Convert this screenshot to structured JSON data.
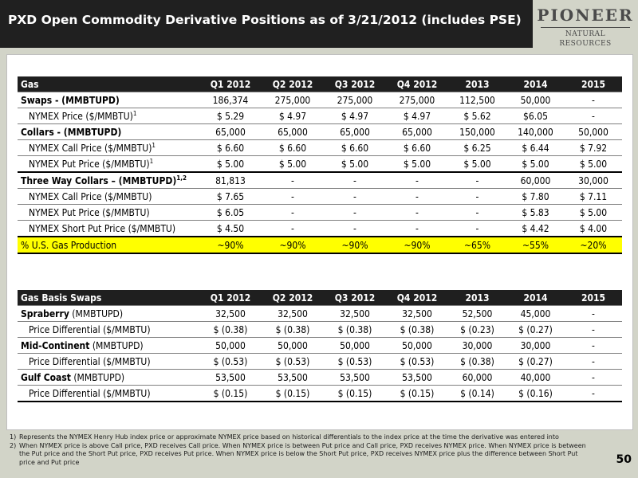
{
  "header": {
    "title": "PXD Open Commodity Derivative Positions as of 3/21/2012 (includes PSE)",
    "logo_main": "PIONEER",
    "logo_sub": "NATURAL RESOURCES"
  },
  "gas_table": {
    "columns": [
      "Gas",
      "Q1 2012",
      "Q2 2012",
      "Q3 2012",
      "Q4 2012",
      "2013",
      "2014",
      "2015"
    ],
    "rows": [
      {
        "label": "Swaps - (MMBTUPD)",
        "sup": "",
        "values": [
          "186,374",
          "275,000",
          "275,000",
          "275,000",
          "112,500",
          "50,000",
          "-"
        ]
      },
      {
        "label": "NYMEX Price ($/MMBTU)",
        "sup": "1",
        "values": [
          "$ 5.29",
          "$ 4.97",
          "$ 4.97",
          "$ 4.97",
          "$ 5.62",
          "$6.05",
          "-"
        ]
      },
      {
        "label": "Collars - (MMBTUPD)",
        "sup": "",
        "values": [
          "65,000",
          "65,000",
          "65,000",
          "65,000",
          "150,000",
          "140,000",
          "50,000"
        ]
      },
      {
        "label": "NYMEX Call Price ($/MMBTU)",
        "sup": "1",
        "values": [
          "$ 6.60",
          "$ 6.60",
          "$ 6.60",
          "$ 6.60",
          "$ 6.25",
          "$ 6.44",
          "$ 7.92"
        ]
      },
      {
        "label": "NYMEX Put Price ($/MMBTU)",
        "sup": "1",
        "values": [
          "$ 5.00",
          "$ 5.00",
          "$ 5.00",
          "$ 5.00",
          "$ 5.00",
          "$ 5.00",
          "$ 5.00"
        ]
      },
      {
        "label": "Three Way Collars – (MMBTUPD)",
        "sup": "1,2",
        "values": [
          "81,813",
          "-",
          "-",
          "-",
          "-",
          "60,000",
          "30,000"
        ]
      },
      {
        "label": "NYMEX Call Price ($/MMBTU)",
        "sup": "",
        "values": [
          "$ 7.65",
          "-",
          "-",
          "-",
          "-",
          "$ 7.80",
          "$ 7.11"
        ]
      },
      {
        "label": "NYMEX Put Price ($/MMBTU)",
        "sup": "",
        "values": [
          "$ 6.05",
          "-",
          "-",
          "-",
          "-",
          "$ 5.83",
          "$ 5.00"
        ]
      },
      {
        "label": "NYMEX Short Put Price ($/MMBTU)",
        "sup": "",
        "values": [
          "$ 4.50",
          "-",
          "-",
          "-",
          "-",
          "$ 4.42",
          "$ 4.00"
        ]
      },
      {
        "label": "% U.S. Gas Production",
        "sup": "",
        "values": [
          "~90%",
          "~90%",
          "~90%",
          "~90%",
          "~65%",
          "~55%",
          "~20%"
        ]
      }
    ]
  },
  "basis_table": {
    "columns": [
      "Gas Basis Swaps",
      "Q1 2012",
      "Q2 2012",
      "Q3 2012",
      "Q4 2012",
      "2013",
      "2014",
      "2015"
    ],
    "rows": [
      {
        "label": "Spraberry",
        "unit": " (MMBTUPD)",
        "values": [
          "32,500",
          "32,500",
          "32,500",
          "32,500",
          "52,500",
          "45,000",
          "-"
        ]
      },
      {
        "label": "Price Differential ($/MMBTU)",
        "unit": "",
        "values": [
          "$ (0.38)",
          "$ (0.38)",
          "$ (0.38)",
          "$ (0.38)",
          "$ (0.23)",
          "$ (0.27)",
          "-"
        ]
      },
      {
        "label": "Mid-Continent",
        "unit": " (MMBTUPD)",
        "values": [
          "50,000",
          "50,000",
          "50,000",
          "50,000",
          "30,000",
          "30,000",
          "-"
        ]
      },
      {
        "label": "Price Differential ($/MMBTU)",
        "unit": "",
        "values": [
          "$ (0.53)",
          "$ (0.53)",
          "$ (0.53)",
          "$ (0.53)",
          "$ (0.38)",
          "$ (0.27)",
          "-"
        ]
      },
      {
        "label": "Gulf Coast",
        "unit": " (MMBTUPD)",
        "values": [
          "53,500",
          "53,500",
          "53,500",
          "53,500",
          "60,000",
          "40,000",
          "-"
        ]
      },
      {
        "label": "Price Differential ($/MMBTU)",
        "unit": "",
        "values": [
          "$ (0.15)",
          "$ (0.15)",
          "$ (0.15)",
          "$ (0.15)",
          "$ (0.14)",
          "$ (0.16)",
          "-"
        ]
      }
    ]
  },
  "footnotes": [
    {
      "num": "1)",
      "text": "Represents the NYMEX Henry Hub index price or approximate NYMEX price based on historical differentials to the index price at the time the derivative was entered into"
    },
    {
      "num": "2)",
      "text": "When NYMEX price is above Call price, PXD receives Call price.  When NYMEX price is between Put price and Call price, PXD receives NYMEX price.  When NYMEX price is between the Put price and the Short Put price, PXD receives Put price.  When NYMEX price is below the Short Put price, PXD receives NYMEX price plus the difference between Short Put price and Put price"
    }
  ],
  "page_number": "50"
}
